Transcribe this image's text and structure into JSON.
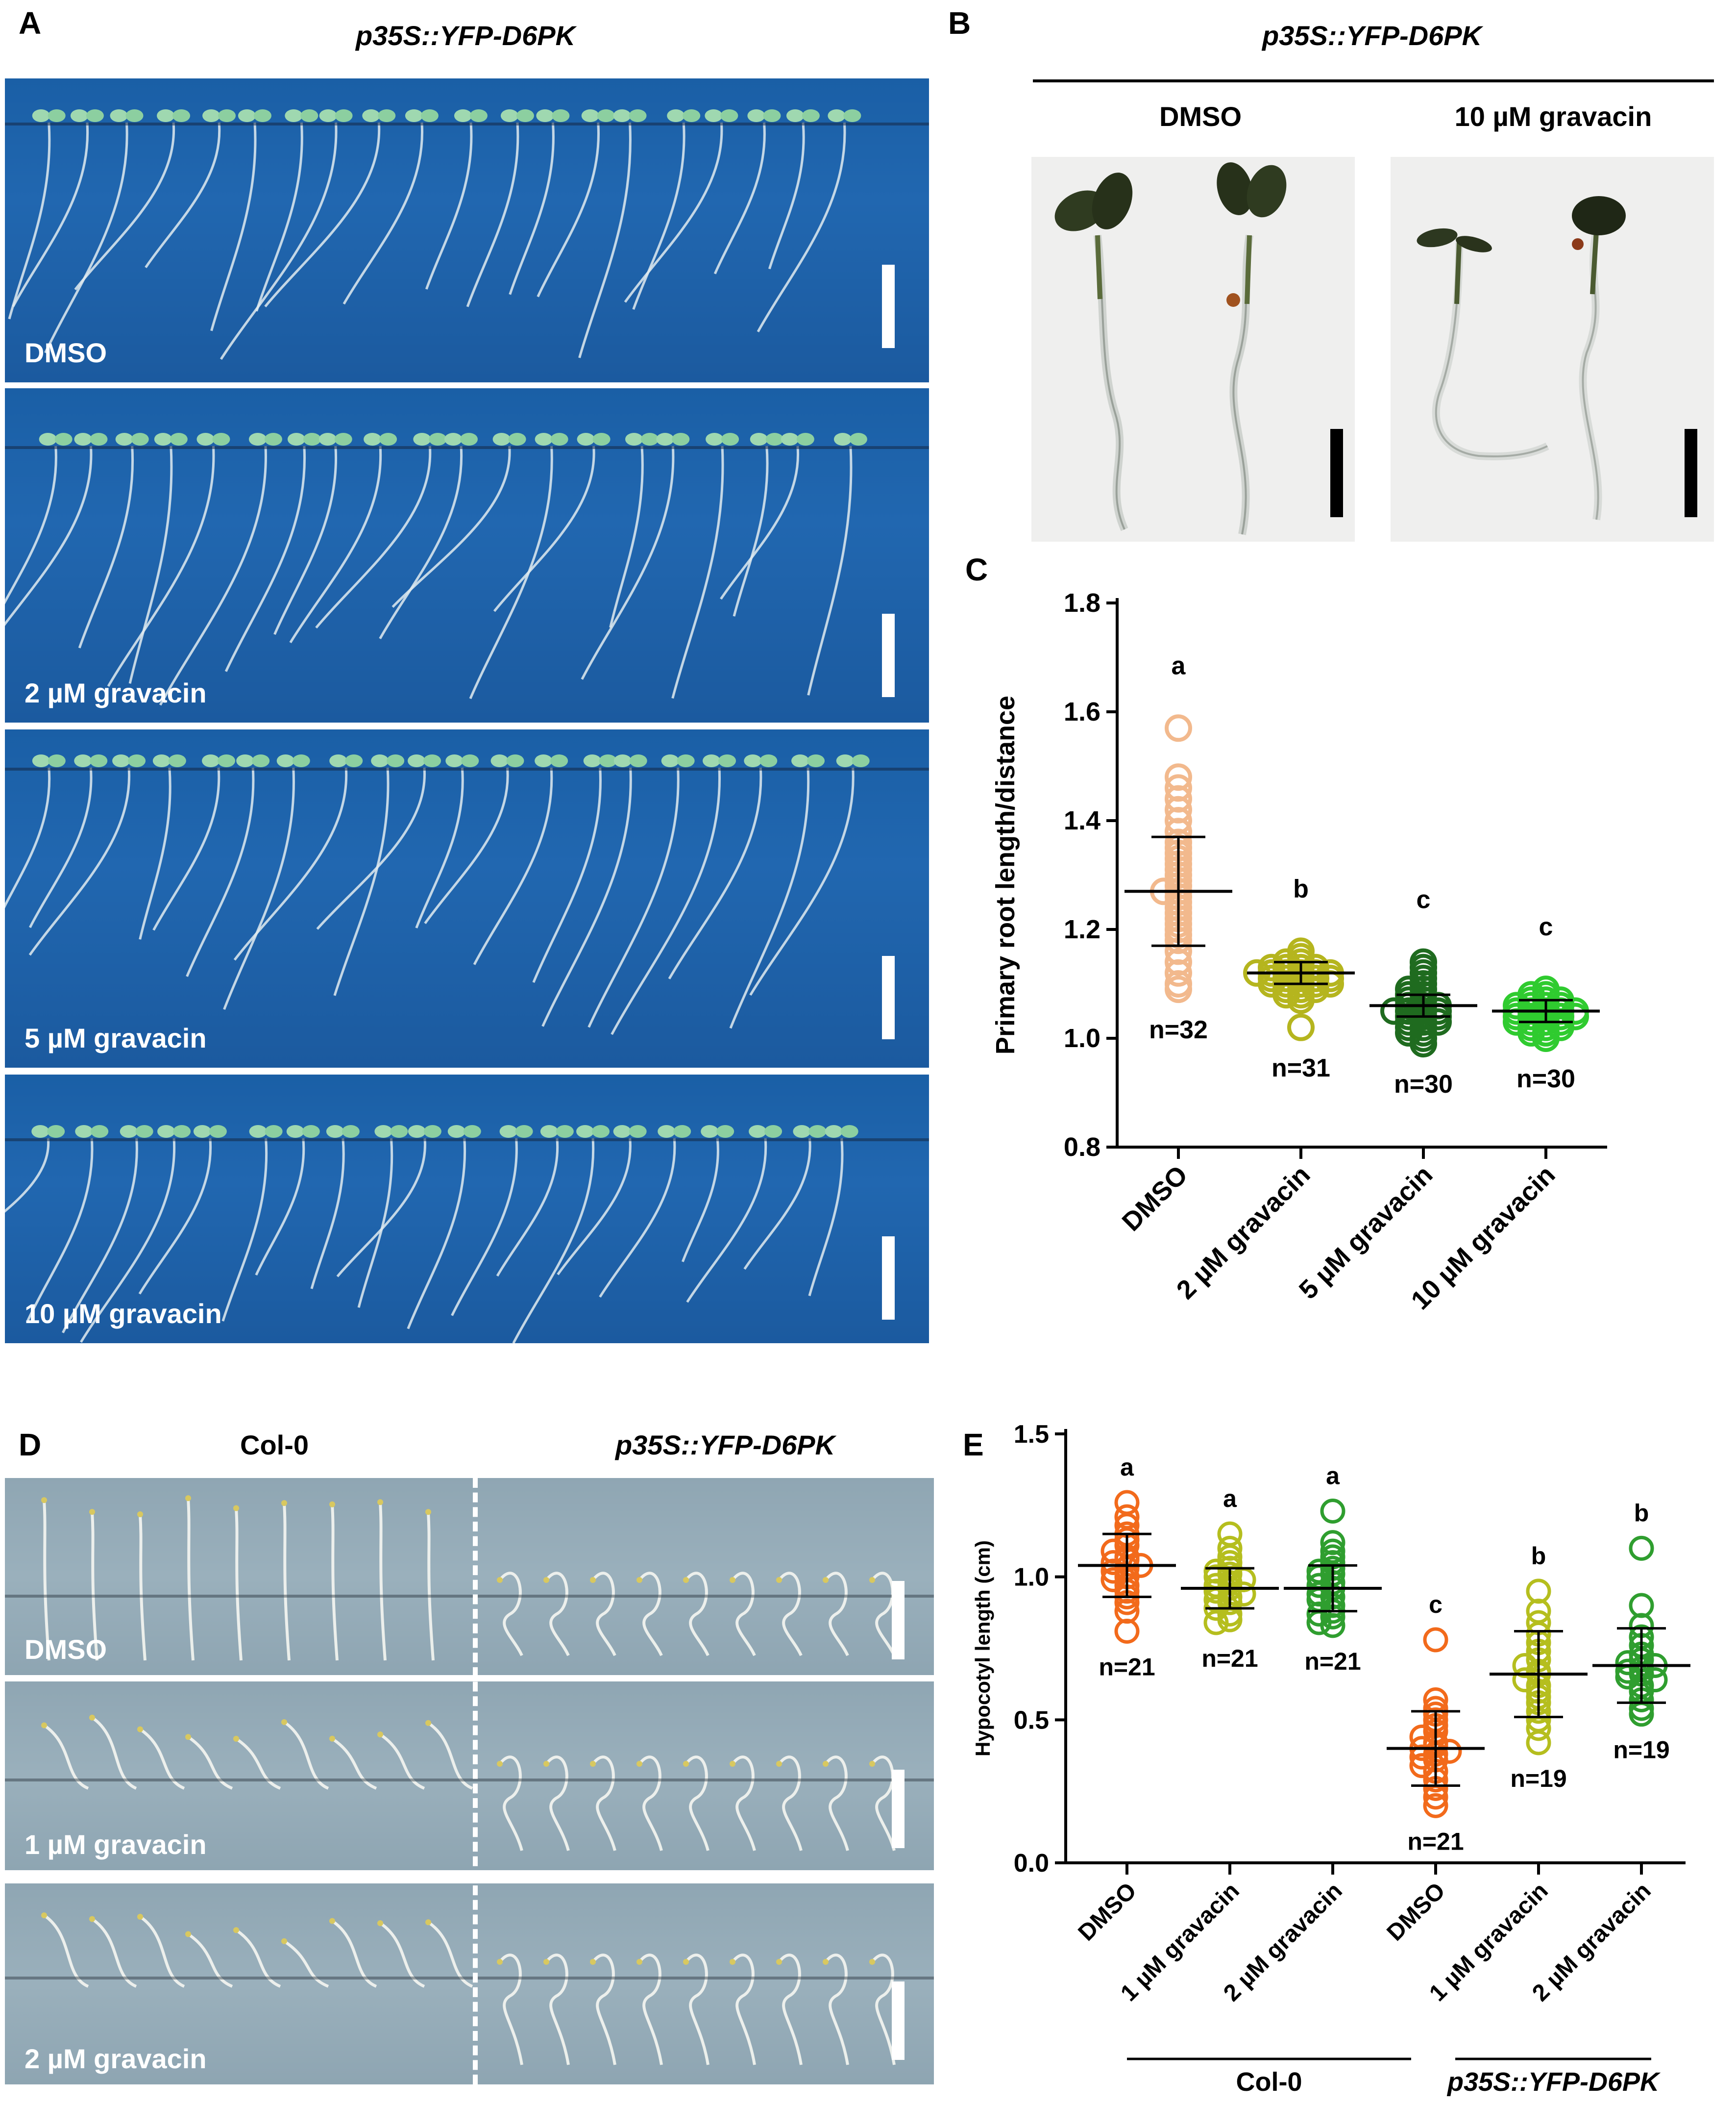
{
  "panel_a": {
    "label": "A",
    "title": "p35S::YFP-D6PK",
    "plates": [
      "DMSO",
      "2 µM gravacin",
      "5 µM gravacin",
      "10 µM gravacin"
    ]
  },
  "panel_b": {
    "label": "B",
    "title": "p35S::YFP-D6PK",
    "conditions": [
      "DMSO",
      "10 µM gravacin"
    ]
  },
  "panel_c": {
    "label": "C",
    "ylabel": "Primary root length/distance"
  },
  "panel_d": {
    "label": "D",
    "col_headers": [
      "Col-0",
      "p35S::YFP-D6PK"
    ],
    "plates": [
      "DMSO",
      "1 µM gravacin",
      "2 µM gravacin"
    ]
  },
  "panel_e": {
    "label": "E",
    "ylabel": "Hypocotyl length (cm)",
    "groups": [
      "Col-0",
      "p35S::YFP-D6PK"
    ]
  },
  "chart_data": [
    {
      "type": "scatter",
      "panel": "C",
      "categories": [
        "DMSO",
        "2 µM gravacin",
        "5 µM gravacin",
        "10 µM gravacin"
      ],
      "ylabel": "Primary root length/distance",
      "ylim": [
        0.8,
        1.8
      ],
      "yticks": [
        "0.8",
        "1.0",
        "1.2",
        "1.4",
        "1.6",
        "1.8"
      ],
      "means": [
        1.27,
        1.12,
        1.06,
        1.05
      ],
      "sd": [
        0.1,
        0.02,
        0.02,
        0.02
      ],
      "letters": [
        "a",
        "b",
        "c",
        "c"
      ],
      "n_labels": [
        "n=32",
        "n=31",
        "n=30",
        "n=30"
      ],
      "colors": [
        "#f2b98d",
        "#b5b51e",
        "#1f6b1f",
        "#2fcb2f"
      ],
      "points": [
        [
          1.57,
          1.48,
          1.46,
          1.44,
          1.42,
          1.4,
          1.38,
          1.36,
          1.35,
          1.34,
          1.33,
          1.32,
          1.31,
          1.3,
          1.29,
          1.28,
          1.27,
          1.27,
          1.26,
          1.25,
          1.24,
          1.23,
          1.22,
          1.21,
          1.2,
          1.19,
          1.18,
          1.16,
          1.14,
          1.12,
          1.1,
          1.09
        ],
        [
          1.16,
          1.15,
          1.14,
          1.14,
          1.13,
          1.13,
          1.13,
          1.12,
          1.12,
          1.12,
          1.12,
          1.12,
          1.12,
          1.11,
          1.11,
          1.11,
          1.11,
          1.11,
          1.1,
          1.1,
          1.1,
          1.1,
          1.09,
          1.09,
          1.09,
          1.08,
          1.08,
          1.07,
          1.13,
          1.1,
          1.02
        ],
        [
          1.14,
          1.13,
          1.12,
          1.11,
          1.1,
          1.09,
          1.09,
          1.08,
          1.08,
          1.07,
          1.07,
          1.06,
          1.06,
          1.06,
          1.05,
          1.05,
          1.05,
          1.05,
          1.04,
          1.04,
          1.04,
          1.03,
          1.03,
          1.03,
          1.02,
          1.02,
          1.01,
          1.01,
          1.0,
          0.99
        ],
        [
          1.09,
          1.08,
          1.08,
          1.07,
          1.07,
          1.07,
          1.06,
          1.06,
          1.06,
          1.06,
          1.05,
          1.05,
          1.05,
          1.05,
          1.05,
          1.04,
          1.04,
          1.04,
          1.04,
          1.04,
          1.03,
          1.03,
          1.03,
          1.03,
          1.02,
          1.02,
          1.02,
          1.01,
          1.01,
          1.0
        ]
      ]
    },
    {
      "type": "scatter",
      "panel": "E",
      "categories": [
        "DMSO",
        "1 µM gravacin",
        "2 µM gravacin",
        "DMSO",
        "1 µM gravacin",
        "2 µM gravacin"
      ],
      "ylabel": "Hypocotyl length (cm)",
      "ylim": [
        0.0,
        1.5
      ],
      "yticks": [
        "0.0",
        "0.5",
        "1.0",
        "1.5"
      ],
      "means": [
        1.04,
        0.96,
        0.96,
        0.4,
        0.66,
        0.69
      ],
      "sd": [
        0.11,
        0.07,
        0.08,
        0.13,
        0.15,
        0.13
      ],
      "letters": [
        "a",
        "a",
        "a",
        "c",
        "b",
        "b"
      ],
      "n_labels": [
        "n=21",
        "n=21",
        "n=21",
        "n=21",
        "n=19",
        "n=19"
      ],
      "colors": [
        "#f26a1b",
        "#b5be1e",
        "#2f9e2f",
        "#f26a1b",
        "#b5be1e",
        "#2f9e2f"
      ],
      "points": [
        [
          1.26,
          1.21,
          1.18,
          1.15,
          1.13,
          1.11,
          1.09,
          1.07,
          1.06,
          1.05,
          1.04,
          1.03,
          1.02,
          1.0,
          0.99,
          0.97,
          0.95,
          0.93,
          0.91,
          0.88,
          0.81
        ],
        [
          1.15,
          1.1,
          1.07,
          1.05,
          1.03,
          1.02,
          1.01,
          1.0,
          0.99,
          0.98,
          0.97,
          0.96,
          0.95,
          0.94,
          0.93,
          0.92,
          0.91,
          0.89,
          0.87,
          0.85,
          0.84
        ],
        [
          1.23,
          1.12,
          1.09,
          1.07,
          1.05,
          1.03,
          1.02,
          1.01,
          1.0,
          0.98,
          0.97,
          0.96,
          0.94,
          0.93,
          0.92,
          0.9,
          0.88,
          0.87,
          0.86,
          0.84,
          0.83
        ],
        [
          0.78,
          0.57,
          0.54,
          0.52,
          0.5,
          0.48,
          0.46,
          0.44,
          0.42,
          0.41,
          0.4,
          0.39,
          0.38,
          0.37,
          0.36,
          0.34,
          0.32,
          0.29,
          0.26,
          0.23,
          0.2
        ],
        [
          0.95,
          0.88,
          0.84,
          0.8,
          0.77,
          0.74,
          0.71,
          0.69,
          0.67,
          0.66,
          0.64,
          0.62,
          0.6,
          0.58,
          0.56,
          0.53,
          0.5,
          0.47,
          0.42
        ],
        [
          1.1,
          0.9,
          0.83,
          0.79,
          0.76,
          0.73,
          0.71,
          0.7,
          0.69,
          0.68,
          0.67,
          0.66,
          0.65,
          0.64,
          0.62,
          0.6,
          0.57,
          0.54,
          0.52
        ]
      ]
    }
  ]
}
